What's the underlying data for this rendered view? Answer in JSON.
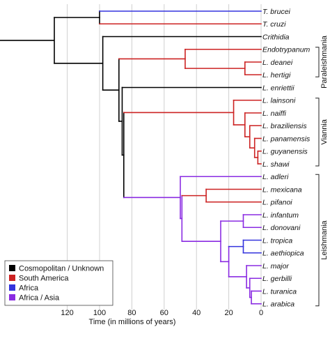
{
  "chart_data": {
    "type": "phylogenetic-tree",
    "xaxis": {
      "label": "Time (in millions of years)",
      "ticks": [
        120,
        100,
        80,
        60,
        40,
        20,
        0
      ],
      "grid": true,
      "range": [
        125,
        0
      ]
    },
    "legend": {
      "position": "bottom-left",
      "items": [
        {
          "label": "Cosmopolitan / Unknown",
          "color": "#000000"
        },
        {
          "label": "South America",
          "color": "#cc2222"
        },
        {
          "label": "Africa",
          "color": "#3333dd"
        },
        {
          "label": "Africa / Asia",
          "color": "#8a2be2"
        }
      ]
    },
    "clades": [
      {
        "name": "Paraleishmania",
        "from": "Endotrypanum",
        "to": "L. hertigi"
      },
      {
        "name": "Viannia",
        "from": "L. lainsoni",
        "to": "L. shawi"
      },
      {
        "name": "Leishmania",
        "from": "L. adleri",
        "to": "L. arabica"
      }
    ],
    "taxa": [
      {
        "name": "T. brucei",
        "italic": true
      },
      {
        "name": "T. cruzi",
        "italic": true
      },
      {
        "name": "Crithidia",
        "italic": true
      },
      {
        "name": "Endotrypanum",
        "italic": true
      },
      {
        "name": "L. deanei",
        "italic": true
      },
      {
        "name": "L. hertigi",
        "italic": true
      },
      {
        "name": "L. enriettii",
        "italic": true
      },
      {
        "name": "L. lainsoni",
        "italic": true
      },
      {
        "name": "L. naiffi",
        "italic": true
      },
      {
        "name": "L. braziliensis",
        "italic": true
      },
      {
        "name": "L. panamensis",
        "italic": true
      },
      {
        "name": "L. guyanensis",
        "italic": true
      },
      {
        "name": "L. shawi",
        "italic": true
      },
      {
        "name": "L. adleri",
        "italic": true
      },
      {
        "name": "L. mexicana",
        "italic": true
      },
      {
        "name": "L. pifanoi",
        "italic": true
      },
      {
        "name": "L. infantum",
        "italic": true
      },
      {
        "name": "L. donovani",
        "italic": true
      },
      {
        "name": "L. tropica",
        "italic": true
      },
      {
        "name": "L. aethiopica",
        "italic": true
      },
      {
        "name": "L. major",
        "italic": true
      },
      {
        "name": "L. gerbilli",
        "italic": true
      },
      {
        "name": "L. turanica",
        "italic": true
      },
      {
        "name": "L. arabica",
        "italic": true
      }
    ],
    "nodes": {
      "root": {
        "age": 128,
        "color": "#000000",
        "children": [
          "tryp",
          "leishNode"
        ]
      },
      "tryp": {
        "age": 100,
        "color": "#000000",
        "children": [
          {
            "leaf": 0,
            "color": "#3333dd"
          },
          {
            "leaf": 1,
            "color": "#cc2222"
          }
        ]
      },
      "leishNode": {
        "age": 98,
        "color": "#000000",
        "children": [
          {
            "leaf": 2,
            "color": "#000000"
          },
          "n88"
        ]
      },
      "n88": {
        "age": 88,
        "color": "#000000",
        "children": [
          "para",
          "n86"
        ]
      },
      "para": {
        "age": 47,
        "color": "#cc2222",
        "children": [
          {
            "leaf": 3,
            "color": "#cc2222"
          },
          "n10"
        ]
      },
      "n10": {
        "age": 10,
        "color": "#cc2222",
        "children": [
          {
            "leaf": 4,
            "color": "#cc2222"
          },
          {
            "leaf": 5,
            "color": "#cc2222"
          }
        ]
      },
      "n86": {
        "age": 86,
        "color": "#000000",
        "children": [
          {
            "leaf": 6,
            "color": "#000000"
          },
          "n85"
        ]
      },
      "n85": {
        "age": 85,
        "color": "#000000",
        "children": [
          "viannia",
          "leishClade"
        ]
      },
      "viannia": {
        "age": 17,
        "color": "#cc2222",
        "children": [
          {
            "leaf": 7,
            "color": "#cc2222"
          },
          "v2"
        ]
      },
      "v2": {
        "age": 10,
        "color": "#cc2222",
        "children": [
          {
            "leaf": 8,
            "color": "#cc2222"
          },
          "v3"
        ]
      },
      "v3": {
        "age": 7,
        "color": "#cc2222",
        "children": [
          {
            "leaf": 9,
            "color": "#cc2222"
          },
          "v4"
        ]
      },
      "v4": {
        "age": 4,
        "color": "#cc2222",
        "children": [
          {
            "leaf": 10,
            "color": "#cc2222"
          },
          "v5"
        ]
      },
      "v5": {
        "age": 2,
        "color": "#cc2222",
        "children": [
          {
            "leaf": 11,
            "color": "#cc2222"
          },
          {
            "leaf": 12,
            "color": "#cc2222"
          }
        ]
      },
      "leishClade": {
        "age": 50,
        "color": "#8a2be2",
        "children": [
          {
            "leaf": 13,
            "color": "#8a2be2"
          },
          "l2"
        ]
      },
      "l2": {
        "age": 49,
        "color": "#8a2be2",
        "children": [
          "mex",
          "l3"
        ]
      },
      "mex": {
        "age": 34,
        "color": "#cc2222",
        "children": [
          {
            "leaf": 14,
            "color": "#cc2222"
          },
          {
            "leaf": 15,
            "color": "#cc2222"
          }
        ]
      },
      "l3": {
        "age": 25,
        "color": "#8a2be2",
        "children": [
          "don",
          "l4"
        ]
      },
      "don": {
        "age": 11,
        "color": "#8a2be2",
        "children": [
          {
            "leaf": 16,
            "color": "#8a2be2"
          },
          {
            "leaf": 17,
            "color": "#8a2be2"
          }
        ]
      },
      "l4": {
        "age": 20,
        "color": "#8a2be2",
        "children": [
          "trop",
          "l5"
        ]
      },
      "trop": {
        "age": 11,
        "color": "#3333dd",
        "children": [
          {
            "leaf": 18,
            "color": "#3333dd"
          },
          {
            "leaf": 19,
            "color": "#3333dd"
          }
        ]
      },
      "l5": {
        "age": 9,
        "color": "#8a2be2",
        "children": [
          {
            "leaf": 20,
            "color": "#8a2be2"
          },
          "l6"
        ]
      },
      "l6": {
        "age": 7,
        "color": "#8a2be2",
        "children": [
          {
            "leaf": 21,
            "color": "#8a2be2"
          },
          "l7"
        ]
      },
      "l7": {
        "age": 6,
        "color": "#8a2be2",
        "children": [
          {
            "leaf": 22,
            "color": "#8a2be2"
          },
          {
            "leaf": 23,
            "color": "#8a2be2"
          }
        ]
      }
    },
    "rootNode": "root"
  }
}
